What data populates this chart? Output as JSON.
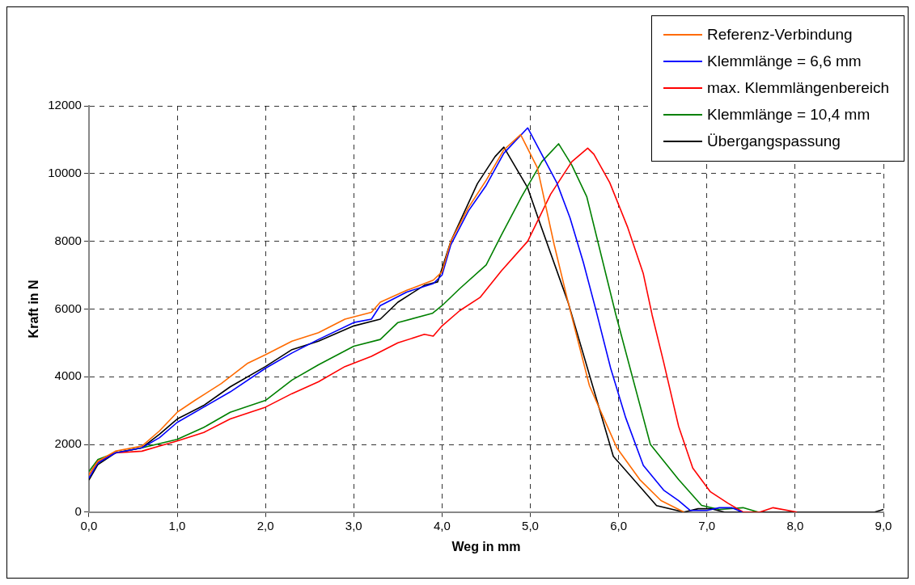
{
  "chart_data": {
    "type": "line",
    "xlabel": "Weg in mm",
    "ylabel": "Kraft in N",
    "xlim": [
      0,
      9
    ],
    "ylim": [
      0,
      12000
    ],
    "xticks": [
      {
        "value": 0,
        "label": "0,0"
      },
      {
        "value": 1,
        "label": "1,0"
      },
      {
        "value": 2,
        "label": "2,0"
      },
      {
        "value": 3,
        "label": "3,0"
      },
      {
        "value": 4,
        "label": "4,0"
      },
      {
        "value": 5,
        "label": "5,0"
      },
      {
        "value": 6,
        "label": "6,0"
      },
      {
        "value": 7,
        "label": "7,0"
      },
      {
        "value": 8,
        "label": "8,0"
      },
      {
        "value": 9,
        "label": "9,0"
      }
    ],
    "yticks": [
      0,
      2000,
      4000,
      6000,
      8000,
      10000,
      12000
    ],
    "grid": true,
    "legend": "top right",
    "series": [
      {
        "name": "Referenz-Verbindung",
        "color": "#ff6a00",
        "x": [
          0,
          0.1,
          0.3,
          0.6,
          0.8,
          1.0,
          1.2,
          1.5,
          1.8,
          2.0,
          2.3,
          2.6,
          2.9,
          3.2,
          3.3,
          3.6,
          3.9,
          4.0,
          4.1,
          4.3,
          4.5,
          4.7,
          4.89,
          5.08,
          5.27,
          5.43,
          5.67,
          5.98,
          6.24,
          6.48,
          6.74
        ],
        "values": [
          1100,
          1500,
          1800,
          1950,
          2400,
          2950,
          3300,
          3800,
          4400,
          4650,
          5050,
          5300,
          5700,
          5900,
          6200,
          6550,
          6850,
          7100,
          8000,
          9000,
          9800,
          10700,
          11150,
          10170,
          7900,
          6180,
          3730,
          1900,
          960,
          340,
          0
        ]
      },
      {
        "name": "Klemmlänge = 6,6 mm",
        "color": "#0000ff",
        "x": [
          0,
          0.1,
          0.3,
          0.6,
          0.8,
          1.0,
          1.3,
          1.6,
          2.0,
          2.3,
          2.6,
          3.0,
          3.2,
          3.3,
          3.6,
          3.9,
          4.0,
          4.1,
          4.3,
          4.5,
          4.7,
          4.97,
          5.3,
          5.45,
          5.6,
          5.74,
          5.91,
          6.08,
          6.28,
          6.51,
          6.68,
          6.81,
          7.0,
          7.14,
          7.28,
          7.4
        ],
        "values": [
          1000,
          1450,
          1750,
          1900,
          2200,
          2650,
          3100,
          3550,
          4250,
          4700,
          5100,
          5600,
          5700,
          6100,
          6500,
          6750,
          7000,
          7900,
          8900,
          9650,
          10600,
          11350,
          9730,
          8690,
          7380,
          6000,
          4250,
          2790,
          1380,
          650,
          340,
          50,
          50,
          130,
          130,
          0
        ]
      },
      {
        "name": "max. Klemmlängenbereich",
        "color": "#ff0000",
        "x": [
          0,
          0.1,
          0.3,
          0.6,
          0.8,
          1.0,
          1.3,
          1.6,
          2.0,
          2.3,
          2.6,
          2.9,
          3.2,
          3.5,
          3.8,
          3.9,
          4.0,
          4.2,
          4.43,
          4.67,
          4.97,
          5.23,
          5.47,
          5.65,
          5.72,
          5.9,
          6.1,
          6.28,
          6.38,
          6.51,
          6.68,
          6.84,
          7.04,
          7.24,
          7.41,
          7.6,
          7.75,
          8.02
        ],
        "values": [
          1100,
          1500,
          1750,
          1800,
          1950,
          2100,
          2350,
          2750,
          3100,
          3500,
          3850,
          4300,
          4600,
          5000,
          5250,
          5200,
          5500,
          5950,
          6340,
          7120,
          8000,
          9390,
          10350,
          10750,
          10570,
          9730,
          8430,
          7040,
          5820,
          4430,
          2530,
          1300,
          600,
          260,
          0,
          0,
          130,
          0
        ]
      },
      {
        "name": "Klemmlänge = 10,4 mm",
        "color": "#008000",
        "x": [
          0,
          0.1,
          0.3,
          0.6,
          1.0,
          1.3,
          1.6,
          2.0,
          2.3,
          2.6,
          3.0,
          3.3,
          3.5,
          3.89,
          4.0,
          4.2,
          4.5,
          4.67,
          4.9,
          5.13,
          5.32,
          5.47,
          5.64,
          5.97,
          6.36,
          6.68,
          6.94,
          7.14,
          7.41,
          7.58
        ],
        "values": [
          1200,
          1550,
          1750,
          1900,
          2150,
          2500,
          2950,
          3300,
          3900,
          4350,
          4900,
          5100,
          5600,
          5870,
          6100,
          6600,
          7300,
          8170,
          9310,
          10350,
          10880,
          10250,
          9310,
          5820,
          2000,
          960,
          200,
          80,
          130,
          0
        ]
      },
      {
        "name": "Übergangspassung",
        "color": "#000000",
        "x": [
          0,
          0.1,
          0.3,
          0.6,
          0.8,
          1.0,
          1.3,
          1.6,
          2.0,
          2.3,
          2.6,
          3.0,
          3.3,
          3.5,
          3.8,
          3.95,
          4.1,
          4.4,
          4.6,
          4.7,
          4.97,
          5.1,
          5.43,
          5.94,
          6.43,
          6.74,
          6.9,
          7.05,
          7.2,
          8.9,
          9.0
        ],
        "values": [
          950,
          1400,
          1750,
          1900,
          2300,
          2750,
          3150,
          3700,
          4300,
          4800,
          5050,
          5500,
          5700,
          6200,
          6700,
          6800,
          8000,
          9700,
          10500,
          10780,
          9580,
          8600,
          6180,
          1650,
          190,
          0,
          100,
          100,
          0,
          0,
          80
        ]
      }
    ]
  }
}
